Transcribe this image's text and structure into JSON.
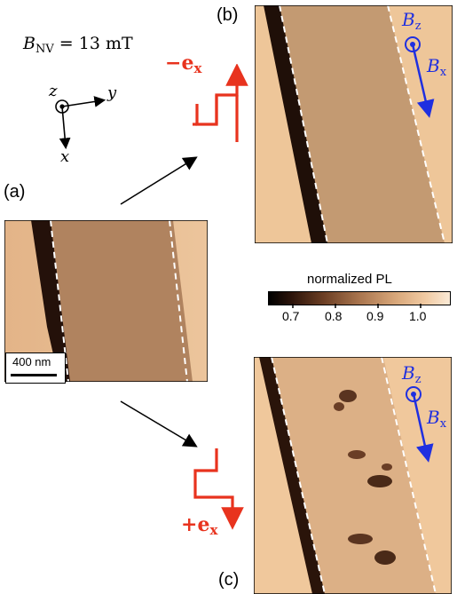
{
  "field_label": {
    "symbol": "B",
    "sub": "NV",
    "value": " = 13 mT"
  },
  "axes": {
    "z": "z",
    "y": "y",
    "x": "x"
  },
  "panels": {
    "a": "(a)",
    "b": "(b)",
    "c": "(c)"
  },
  "pulses": {
    "top": {
      "sign": "−",
      "vector": "e",
      "sub": "x"
    },
    "bottom": {
      "sign": "+",
      "vector": "e",
      "sub": "x"
    }
  },
  "field_vectors": {
    "bz": "B",
    "bz_sub": "z",
    "bx": "B",
    "bx_sub": "x"
  },
  "scalebar": "400 nm",
  "colorbar": {
    "title": "normalized PL",
    "ticks": [
      "0.7",
      "0.8",
      "0.9",
      "1.0"
    ]
  },
  "colors": {
    "red": "#e8331e",
    "blue": "#1f2fe0",
    "map_light": "#f1c89a",
    "map_dark": "#1a0a04"
  }
}
